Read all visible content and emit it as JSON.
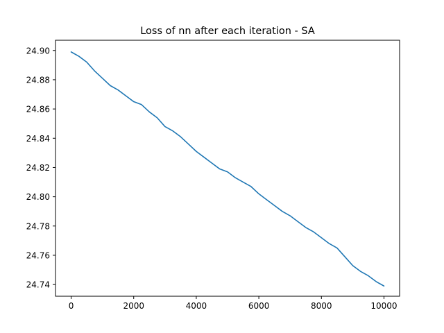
{
  "chart_data": {
    "type": "line",
    "title": "Loss of nn after each iteration - SA",
    "xlabel": "",
    "ylabel": "",
    "xlim": [
      -500,
      10500
    ],
    "ylim": [
      24.732,
      24.907
    ],
    "xticks": [
      0,
      2000,
      4000,
      6000,
      8000,
      10000
    ],
    "xtick_labels": [
      "0",
      "2000",
      "4000",
      "6000",
      "8000",
      "10000"
    ],
    "yticks": [
      24.74,
      24.76,
      24.78,
      24.8,
      24.82,
      24.84,
      24.86,
      24.88,
      24.9
    ],
    "ytick_labels": [
      "24.74",
      "24.76",
      "24.78",
      "24.80",
      "24.82",
      "24.84",
      "24.86",
      "24.88",
      "24.90"
    ],
    "grid": false,
    "series": [
      {
        "color": "#1f77b4",
        "x": [
          0,
          250,
          500,
          750,
          1000,
          1250,
          1500,
          1750,
          2000,
          2250,
          2500,
          2750,
          3000,
          3250,
          3500,
          3750,
          4000,
          4250,
          4500,
          4750,
          5000,
          5250,
          5500,
          5750,
          6000,
          6250,
          6500,
          6750,
          7000,
          7250,
          7500,
          7750,
          8000,
          8250,
          8500,
          8750,
          9000,
          9250,
          9500,
          9750,
          10000
        ],
        "y": [
          24.899,
          24.896,
          24.892,
          24.886,
          24.881,
          24.876,
          24.873,
          24.869,
          24.865,
          24.863,
          24.858,
          24.854,
          24.848,
          24.845,
          24.841,
          24.836,
          24.831,
          24.827,
          24.823,
          24.819,
          24.817,
          24.813,
          24.81,
          24.807,
          24.802,
          24.798,
          24.794,
          24.79,
          24.787,
          24.783,
          24.779,
          24.776,
          24.772,
          24.768,
          24.765,
          24.759,
          24.753,
          24.749,
          24.746,
          24.742,
          24.739
        ]
      }
    ]
  }
}
